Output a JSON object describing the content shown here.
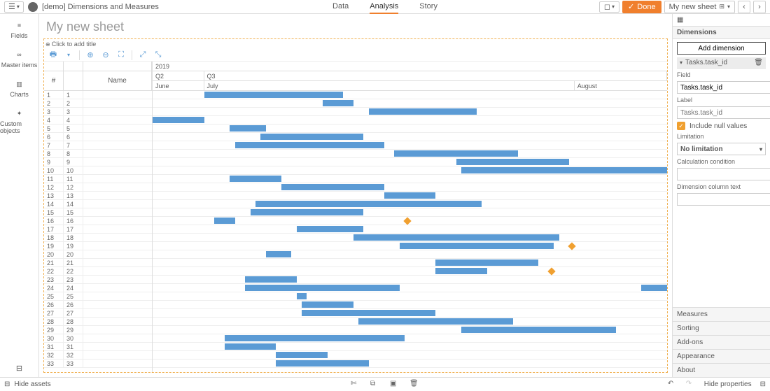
{
  "app": {
    "title": "[demo] Dimensions and Measures"
  },
  "tabs": {
    "data": "Data",
    "analysis": "Analysis",
    "story": "Story",
    "active": "analysis"
  },
  "topbar": {
    "done": "Done",
    "sheet_dd": "My new sheet"
  },
  "assets": {
    "fields": "Fields",
    "master": "Master items",
    "charts": "Charts",
    "custom": "Custom objects"
  },
  "sheet": {
    "title": "My new sheet"
  },
  "viz": {
    "placeholder_title": "Click to add title",
    "timeline": {
      "year": "2019",
      "quarters": [
        "Q2",
        "Q3"
      ],
      "months": [
        "June",
        "July",
        "August"
      ]
    },
    "columns": {
      "index": "#",
      "name": "Name"
    },
    "rows": [
      {
        "n": 1,
        "id": 1,
        "start": 10,
        "len": 27
      },
      {
        "n": 2,
        "id": 2,
        "start": 33,
        "len": 6
      },
      {
        "n": 3,
        "id": 3,
        "start": 42,
        "len": 21
      },
      {
        "n": 4,
        "id": 4,
        "start": 0,
        "len": 10
      },
      {
        "n": 5,
        "id": 5,
        "start": 15,
        "len": 7
      },
      {
        "n": 6,
        "id": 6,
        "start": 21,
        "len": 20
      },
      {
        "n": 7,
        "id": 7,
        "start": 16,
        "len": 29
      },
      {
        "n": 8,
        "id": 8,
        "start": 47,
        "len": 24
      },
      {
        "n": 9,
        "id": 9,
        "start": 59,
        "len": 22
      },
      {
        "n": 10,
        "id": 10,
        "start": 60,
        "len": 40
      },
      {
        "n": 11,
        "id": 11,
        "start": 15,
        "len": 10
      },
      {
        "n": 12,
        "id": 12,
        "start": 25,
        "len": 20
      },
      {
        "n": 13,
        "id": 13,
        "start": 45,
        "len": 10
      },
      {
        "n": 14,
        "id": 14,
        "start": 20,
        "len": 44
      },
      {
        "n": 15,
        "id": 15,
        "start": 19,
        "len": 22
      },
      {
        "n": 16,
        "id": 16,
        "start": 12,
        "len": 4,
        "milestone": true,
        "mpos": 49
      },
      {
        "n": 17,
        "id": 17,
        "start": 28,
        "len": 13
      },
      {
        "n": 18,
        "id": 18,
        "start": 39,
        "len": 40
      },
      {
        "n": 19,
        "id": 19,
        "start": 48,
        "len": 30,
        "milestone": true,
        "mpos": 81
      },
      {
        "n": 20,
        "id": 20,
        "start": 22,
        "len": 5
      },
      {
        "n": 21,
        "id": 21,
        "start": 55,
        "len": 20
      },
      {
        "n": 22,
        "id": 22,
        "start": 55,
        "len": 10,
        "milestone": true,
        "mpos": 77
      },
      {
        "n": 23,
        "id": 23,
        "start": 18,
        "len": 10
      },
      {
        "n": 24,
        "id": 24,
        "start": 18,
        "len": 30,
        "tail_start": 95,
        "tail_len": 14
      },
      {
        "n": 25,
        "id": 25,
        "start": 28,
        "len": 2
      },
      {
        "n": 26,
        "id": 26,
        "start": 29,
        "len": 10
      },
      {
        "n": 27,
        "id": 27,
        "start": 29,
        "len": 26
      },
      {
        "n": 28,
        "id": 28,
        "start": 40,
        "len": 30
      },
      {
        "n": 29,
        "id": 29,
        "start": 60,
        "len": 30
      },
      {
        "n": 30,
        "id": 30,
        "start": 14,
        "len": 35
      },
      {
        "n": 31,
        "id": 31,
        "start": 14,
        "len": 10
      },
      {
        "n": 32,
        "id": 32,
        "start": 24,
        "len": 10
      },
      {
        "n": 33,
        "id": 33,
        "start": 24,
        "len": 18
      }
    ],
    "bar_color": "#5b9bd5",
    "milestone_color": "#f0a030"
  },
  "props": {
    "dimensions_h": "Dimensions",
    "add_dimension": "Add dimension",
    "dim_item": "Tasks.task_id",
    "field_l": "Field",
    "field_v": "Tasks.task_id",
    "label_l": "Label",
    "label_ph": "Tasks.task_id",
    "include_null": "Include null values",
    "limitation_l": "Limitation",
    "limitation_v": "No limitation",
    "calc_cond_l": "Calculation condition",
    "dim_col_text_l": "Dimension column text",
    "measures": "Measures",
    "sorting": "Sorting",
    "addons": "Add-ons",
    "appearance": "Appearance",
    "about": "About"
  },
  "footer": {
    "hide_assets": "Hide assets",
    "hide_props": "Hide properties"
  }
}
